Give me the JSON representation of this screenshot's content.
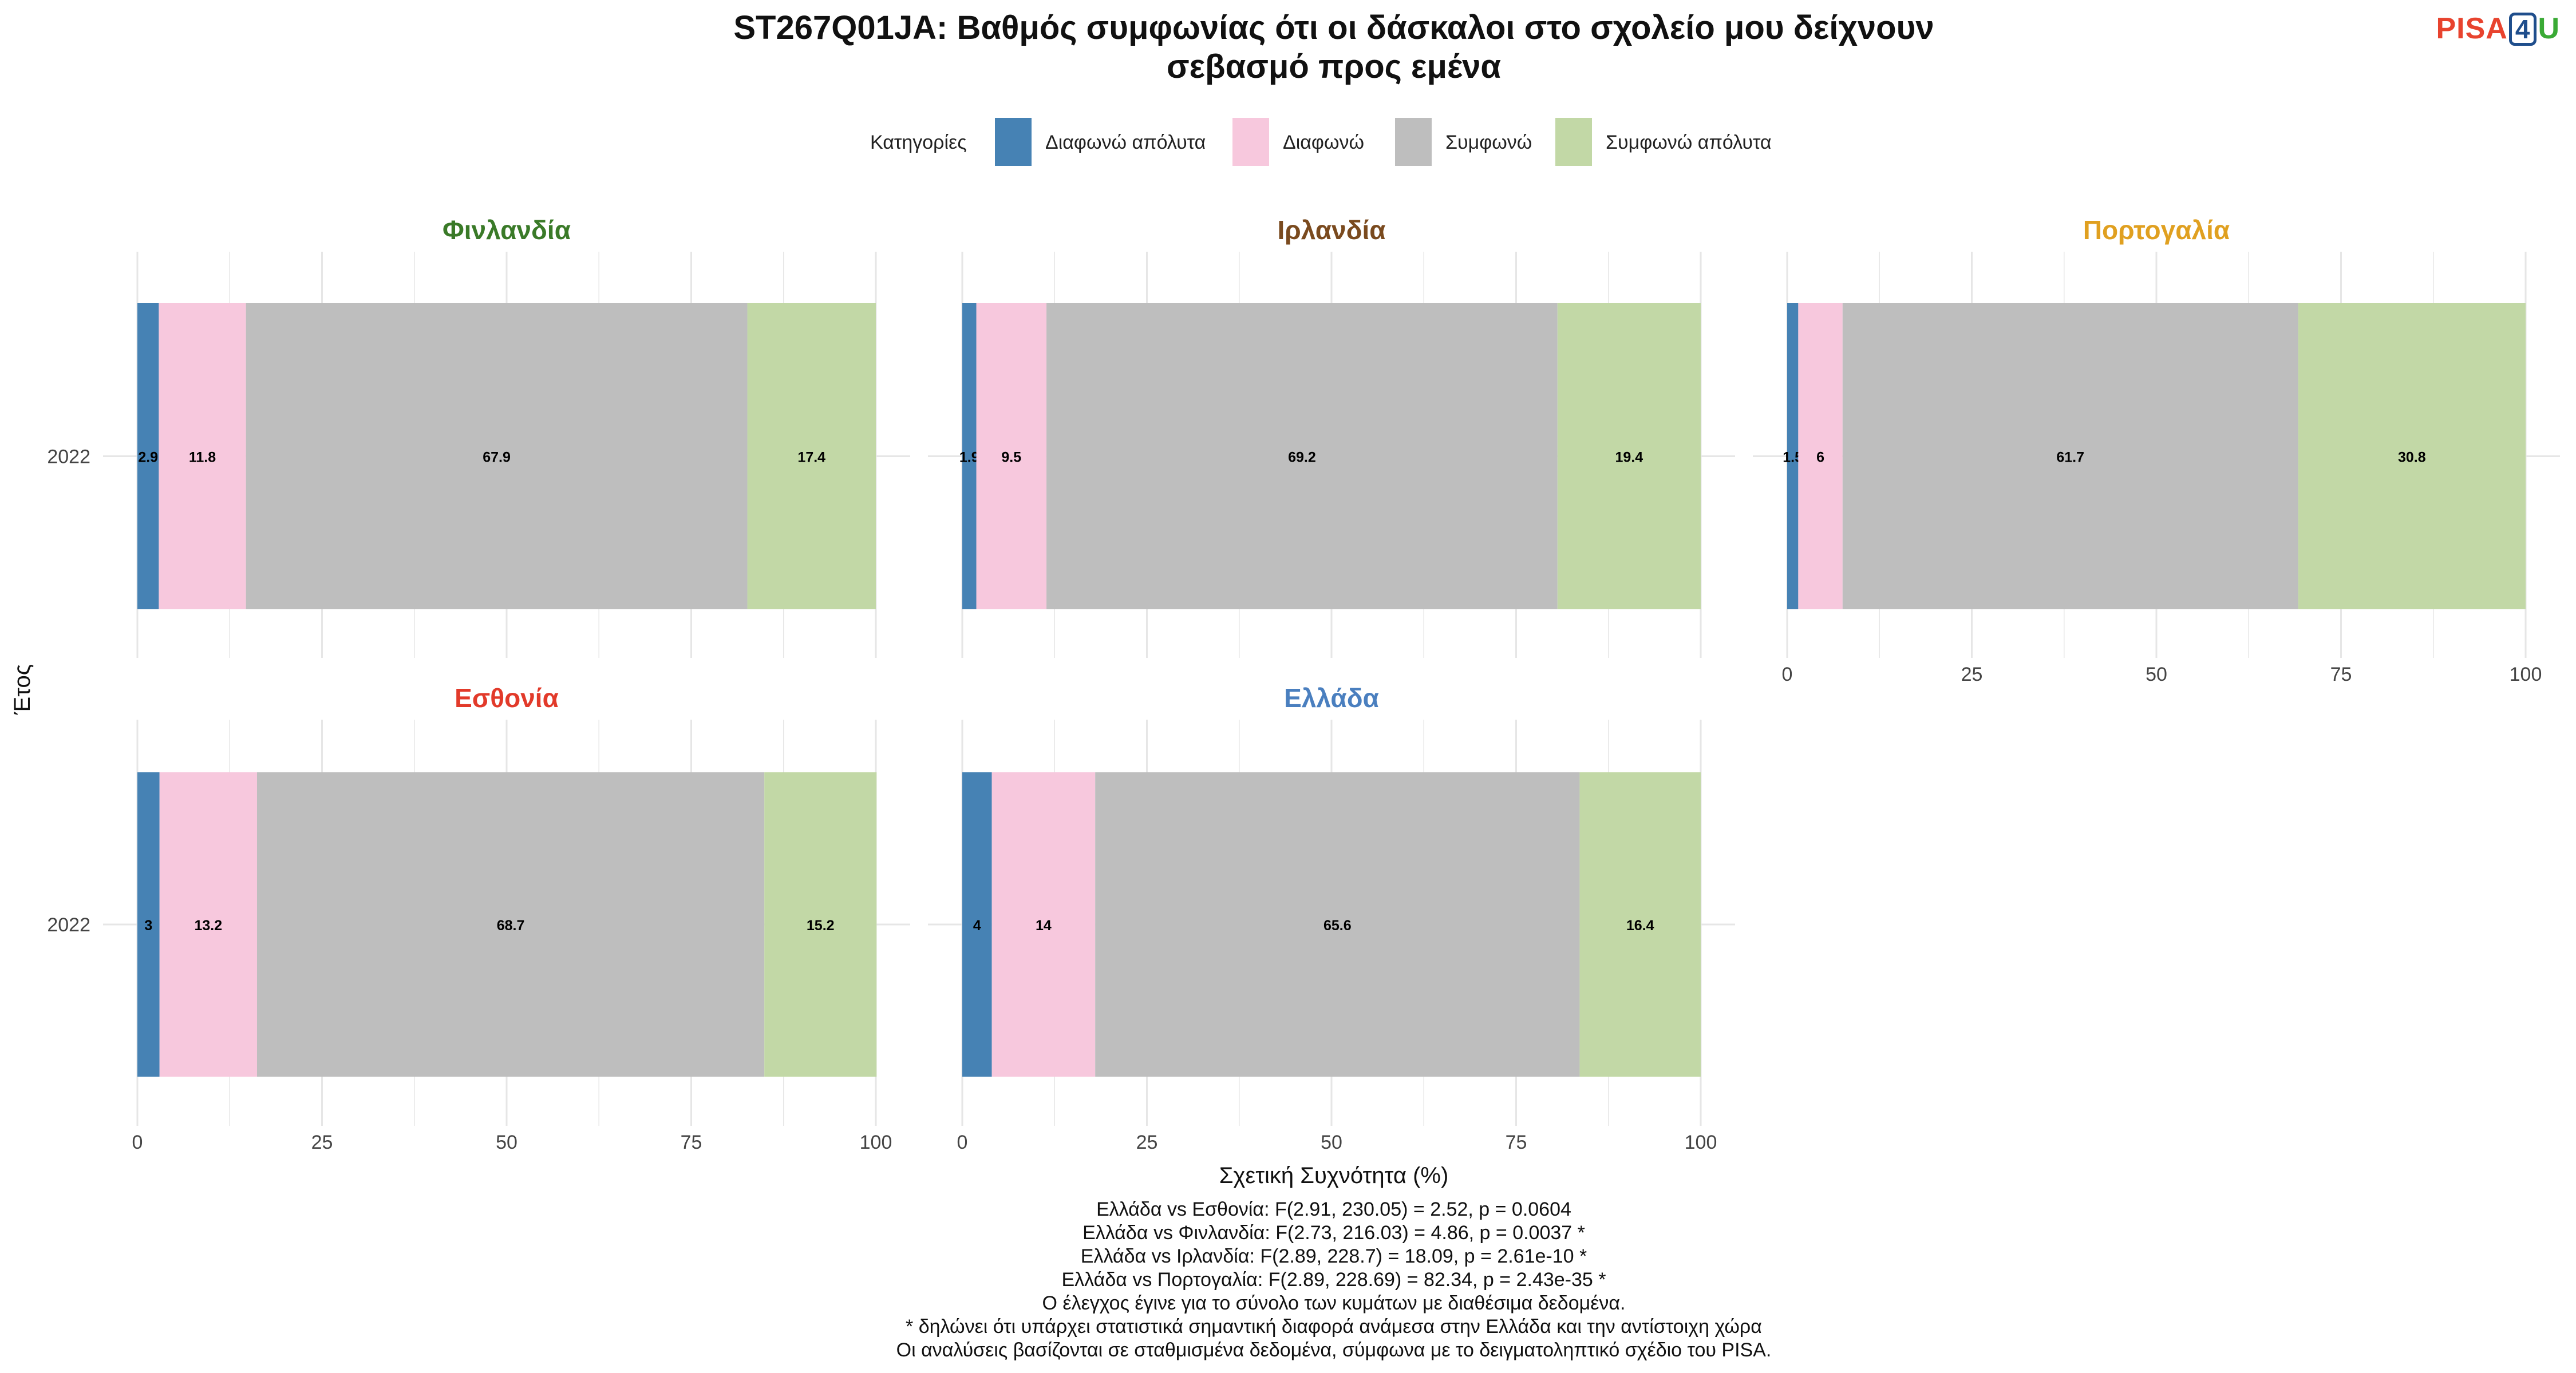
{
  "chart_data": {
    "type": "bar",
    "orientation": "horizontal-stacked",
    "title_lines": [
      "ST267Q01JA: Βαθμός συμφωνίας ότι οι δάσκαλοι στο σχολείο μου δείχνουν",
      "σεβασμό προς εμένα"
    ],
    "legend_title": "Κατηγορίες",
    "legend_position": "top",
    "categories": [
      "Διαφωνώ απόλυτα",
      "Διαφωνώ",
      "Συμφωνώ",
      "Συμφωνώ απόλυτα"
    ],
    "category_colors": [
      "#4682b4",
      "#f7c8dd",
      "#bebebe",
      "#c2d8a6"
    ],
    "xlabel": "Σχετική Συχνότητα (%)",
    "ylabel": "Έτος",
    "xlim": [
      0,
      100
    ],
    "x_ticks": [
      "0",
      "25",
      "50",
      "75",
      "100"
    ],
    "grid": true,
    "panels": [
      {
        "country": "Φινλανδία",
        "color": "#3a7a28",
        "year": "2022",
        "values": [
          2.9,
          11.8,
          67.9,
          17.4
        ]
      },
      {
        "country": "Ιρλανδία",
        "color": "#7a4a1e",
        "year": "2022",
        "values": [
          1.9,
          9.5,
          69.2,
          19.4
        ]
      },
      {
        "country": "Πορτογαλία",
        "color": "#e0a020",
        "year": "2022",
        "values": [
          1.5,
          6,
          61.7,
          30.8
        ]
      },
      {
        "country": "Εσθονία",
        "color": "#e23a2a",
        "year": "2022",
        "values": [
          3,
          13.2,
          68.7,
          15.2
        ]
      },
      {
        "country": "Ελλάδα",
        "color": "#4a7fbf",
        "year": "2022",
        "values": [
          4,
          14,
          65.6,
          16.4
        ]
      }
    ],
    "footnotes": [
      "Ελλάδα vs Εσθονία: F(2.91, 230.05) = 2.52, p = 0.0604",
      "Ελλάδα vs Φινλανδία: F(2.73, 216.03) = 4.86, p = 0.0037 *",
      "Ελλάδα vs Ιρλανδία: F(2.89, 228.7) = 18.09, p = 2.61e-10 *",
      "Ελλάδα vs Πορτογαλία: F(2.89, 228.69) = 82.34, p = 2.43e-35 *",
      "Ο έλεγχος έγινε για το σύνολο των κυμάτων με διαθέσιμα δεδομένα.",
      "* δηλώνει ότι υπάρχει στατιστικά σημαντική διαφορά ανάμεσα στην Ελλάδα και την αντίστοιχη χώρα",
      "Οι αναλύσεις βασίζονται σε σταθμισμένα δεδομένα, σύμφωνα με το δειγματοληπτικό σχέδιο του PISA."
    ]
  },
  "logo": {
    "part1": "PISA",
    "part2": "4",
    "part3": "U"
  }
}
